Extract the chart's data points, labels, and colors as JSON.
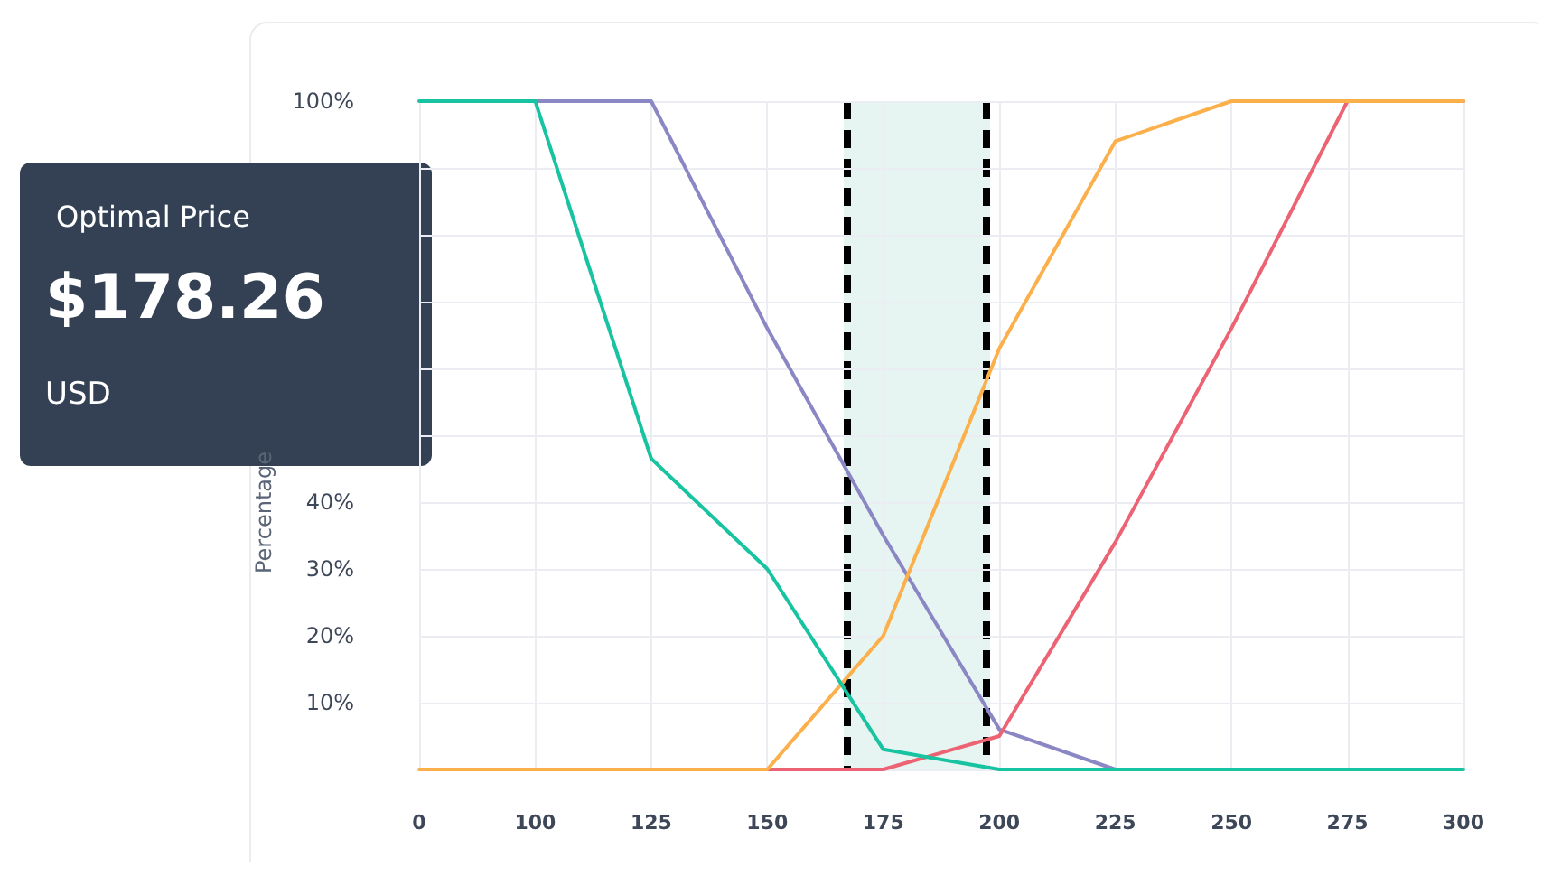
{
  "chart_data": {
    "type": "line",
    "ylabel": "Percentage",
    "categories": [
      "0",
      "100",
      "125",
      "150",
      "175",
      "200",
      "225",
      "250",
      "275",
      "300"
    ],
    "series": [
      {
        "color": "#8b86c4",
        "values": [
          null,
          100,
          100,
          66,
          35,
          6,
          0,
          0,
          null,
          null
        ]
      },
      {
        "color": "#ec6374",
        "values": [
          null,
          0,
          0,
          0,
          0,
          5,
          34,
          66,
          100,
          100
        ]
      },
      {
        "color": "#fbb04c",
        "values": [
          0,
          0,
          0,
          0,
          20,
          63,
          94,
          100,
          100,
          100
        ]
      },
      {
        "color": "#17c3a0",
        "values": [
          100,
          100,
          46.5,
          30,
          3,
          0,
          0,
          0,
          0,
          0
        ]
      }
    ],
    "ylim": [
      0,
      100
    ],
    "yticks": [
      {
        "value": 0,
        "label": null
      },
      {
        "value": 10,
        "label": "10%"
      },
      {
        "value": 20,
        "label": "20%"
      },
      {
        "value": 30,
        "label": "30%"
      },
      {
        "value": 40,
        "label": "40%"
      },
      {
        "value": 50,
        "label": null
      },
      {
        "value": 60,
        "label": null
      },
      {
        "value": 70,
        "label": null
      },
      {
        "value": 80,
        "label": null
      },
      {
        "value": 90,
        "label": null
      },
      {
        "value": 100,
        "label": "100%"
      }
    ],
    "annotations": [
      "Optimal Price",
      "$178.26",
      "USD"
    ],
    "grid": true,
    "marker": "none",
    "line_style": "solid"
  }
}
